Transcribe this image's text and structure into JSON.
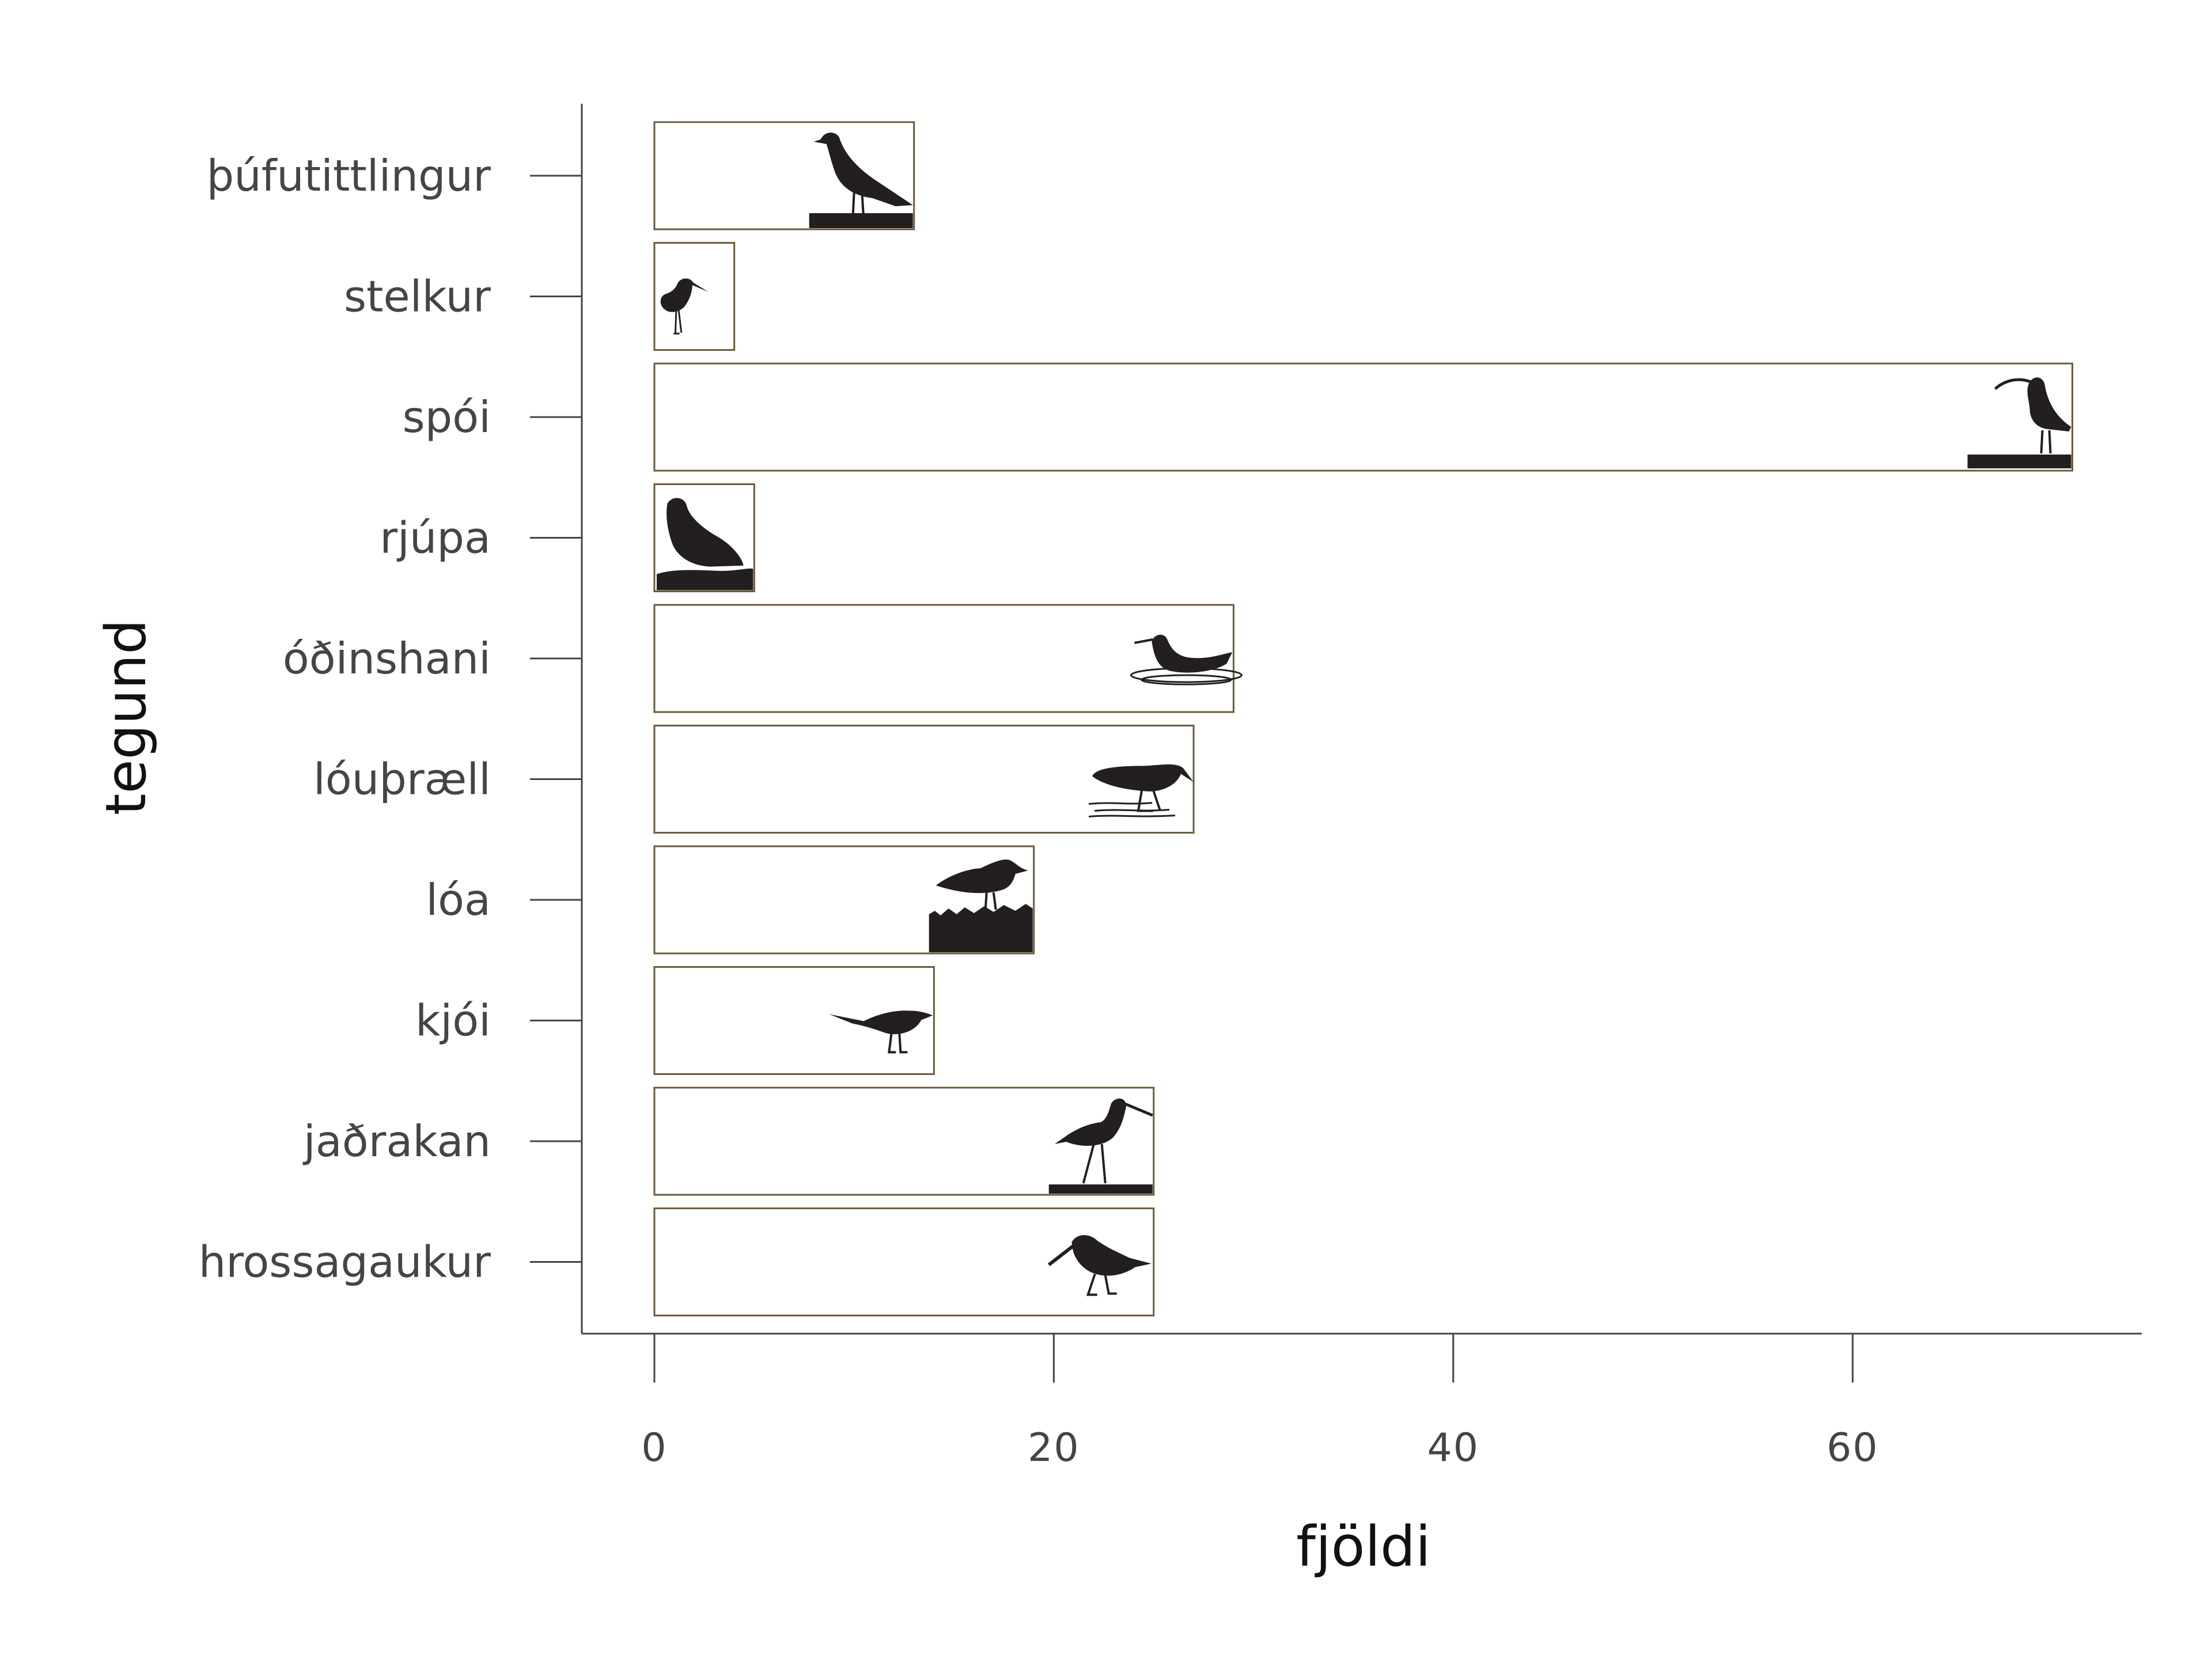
{
  "colors": {
    "bar_stroke": "#6b5a3a",
    "bar_fill": "#ffffff",
    "silhouette": "#231f20",
    "axis": "#444444",
    "tick_text": "#454545",
    "title_text": "#111111"
  },
  "chart_data": {
    "type": "bar",
    "orientation": "horizontal",
    "xlabel": "fjöldi",
    "ylabel": "tegund",
    "xlim": [
      -1.8,
      74
    ],
    "xticks": [
      0,
      20,
      40,
      60
    ],
    "grid": false,
    "legend": "none",
    "categories": [
      "þúfutittlingur",
      "stelkur",
      "spói",
      "rjúpa",
      "óðinshani",
      "lóuþræll",
      "lóa",
      "kjói",
      "jaðrakan",
      "hrossagaukur"
    ],
    "values": [
      13,
      4,
      71,
      5,
      29,
      27,
      19,
      14,
      25,
      25
    ],
    "icons": [
      "wheatear-silhouette-icon",
      "redshank-silhouette-icon",
      "whimbrel-silhouette-icon",
      "ptarmigan-silhouette-icon",
      "phalarope-silhouette-icon",
      "dunlin-silhouette-icon",
      "golden-plover-silhouette-icon",
      "skua-silhouette-icon",
      "godwit-silhouette-icon",
      "snipe-silhouette-icon"
    ]
  }
}
